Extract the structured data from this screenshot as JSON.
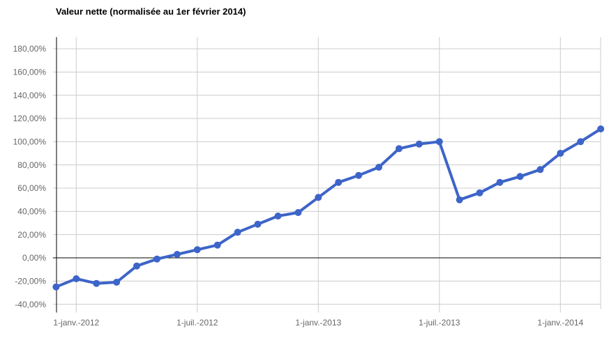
{
  "chart_data": {
    "type": "line",
    "title": "Valeur nette (normalisée au 1er février 2014)",
    "series": [
      {
        "name": "Valeur nette",
        "x": [
          "déc. 2011",
          "janv. 2012",
          "févr. 2012",
          "mars 2012",
          "avr. 2012",
          "mai 2012",
          "juin 2012",
          "juil. 2012",
          "août 2012",
          "sept. 2012",
          "oct. 2012",
          "nov. 2012",
          "déc. 2012",
          "janv. 2013",
          "févr. 2013",
          "mars 2013",
          "avr. 2013",
          "mai 2013",
          "juin 2013",
          "juil. 2013",
          "août 2013",
          "sept. 2013",
          "oct. 2013",
          "nov. 2013",
          "déc. 2013",
          "janv. 2014",
          "févr. 2014",
          "mars 2014"
        ],
        "values": [
          -25,
          -18,
          -22,
          -21,
          -7,
          -1,
          3,
          7,
          11,
          22,
          29,
          36,
          39,
          52,
          65,
          71,
          78,
          94,
          98,
          100,
          50,
          56,
          65,
          70,
          76,
          90,
          100,
          111
        ]
      }
    ],
    "y_axis": {
      "tick_values": [
        180,
        160,
        140,
        120,
        100,
        80,
        60,
        40,
        20,
        0,
        -20,
        -40
      ],
      "tick_labels": [
        "180,00%",
        "160,00%",
        "140,00%",
        "120,00%",
        "100,00%",
        "80,00%",
        "60,00%",
        "40,00%",
        "20,00%",
        "0,00%",
        "-20,00%",
        "-40,00%"
      ],
      "ylim": [
        -44,
        190
      ],
      "baseline_value": 0
    },
    "x_axis": {
      "tick_month_indices": [
        1,
        7,
        13,
        19,
        25
      ],
      "tick_labels": [
        "1-janv.-2012",
        "1-juil.-2012",
        "1-janv.-2013",
        "1-juil.-2013",
        "1-janv.-2014"
      ]
    },
    "grid": true,
    "legend": "none",
    "colors": {
      "line": "#3D64C8",
      "point": "#3D64C8",
      "gridline": "#CCCCCC",
      "axis": "#000000",
      "tick_label": "#666666",
      "title": "#000000",
      "background": "#FFFFFF"
    }
  }
}
